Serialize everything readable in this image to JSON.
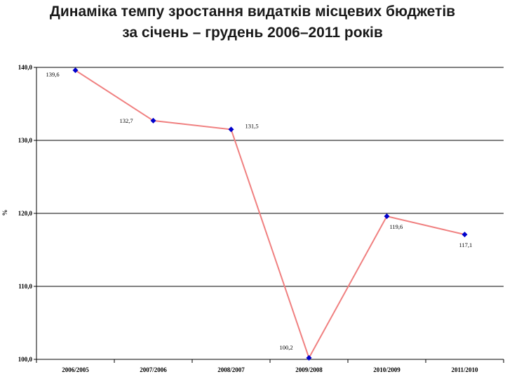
{
  "title_lines": [
    "Динаміка темпу зростання видатків місцевих бюджетів",
    "за січень – грудень 2006–2011 років"
  ],
  "chart_data": {
    "type": "line",
    "title": "Динаміка темпу зростання видатків місцевих бюджетів за січень – грудень 2006–2011 років",
    "xlabel": "",
    "ylabel": "%",
    "categories": [
      "2006/2005",
      "2007/2006",
      "2008/2007",
      "2009/2008",
      "2010/2009",
      "2011/2010"
    ],
    "series": [
      {
        "values": [
          139.6,
          132.7,
          131.5,
          100.2,
          119.6,
          117.1
        ],
        "labels": [
          "139,6",
          "132,7",
          "131,5",
          "100,2",
          "119,6",
          "117,1"
        ],
        "line_color": "#f08080",
        "marker_color": "#0000cc"
      }
    ],
    "yticks": [
      100,
      110,
      120,
      130,
      140
    ],
    "ytick_labels": [
      "100,0",
      "110,0",
      "120,0",
      "130,0",
      "140,0"
    ],
    "ylim": [
      100,
      140
    ],
    "grid": "horizontal",
    "legend": "none"
  }
}
